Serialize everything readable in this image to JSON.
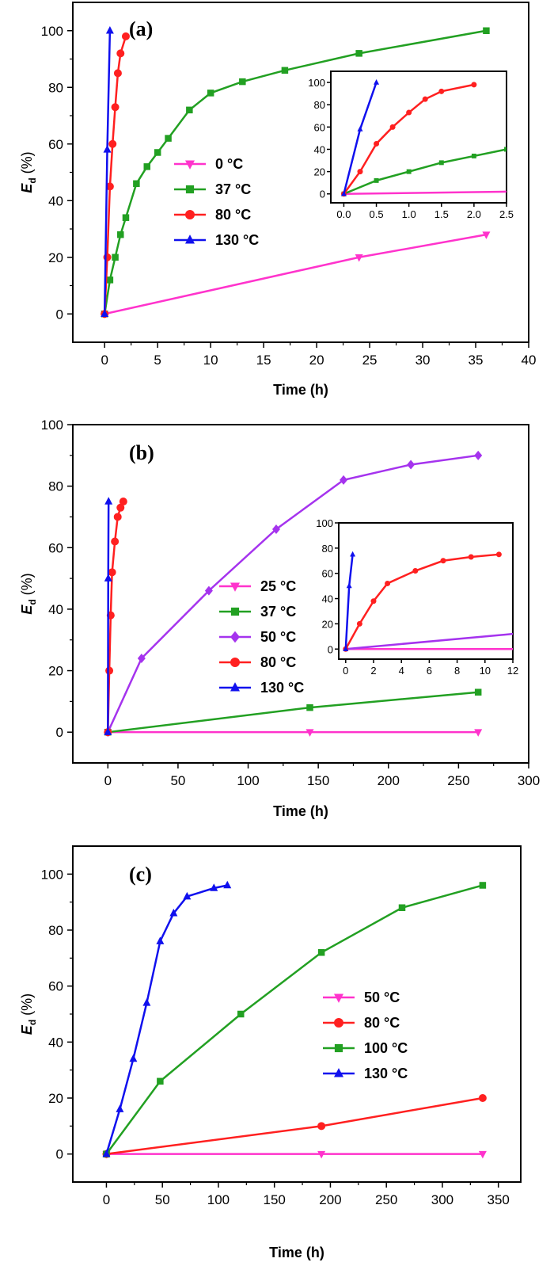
{
  "colors": {
    "magenta": "#ff33cc",
    "green": "#22a022",
    "red": "#ff2020",
    "blue": "#1010ee",
    "purple": "#a533ee"
  },
  "chart_data": [
    {
      "id": "a",
      "type": "line",
      "panel_label": "(a)",
      "xlabel": "Time (h)",
      "ylabel_main": "E",
      "ylabel_sub": "d",
      "ylabel_unit": " (%)",
      "xlim": [
        -3,
        40
      ],
      "ylim": [
        -10,
        110
      ],
      "xticks": [
        0,
        5,
        10,
        15,
        20,
        25,
        30,
        35,
        40
      ],
      "yticks": [
        0,
        20,
        40,
        60,
        80,
        100
      ],
      "legend_position": "center-left",
      "series": [
        {
          "name": "0 °C",
          "color": "magenta",
          "marker": "triangle-down",
          "x": [
            0,
            24,
            36
          ],
          "y": [
            0,
            20,
            28
          ]
        },
        {
          "name": "37 °C",
          "color": "green",
          "marker": "square",
          "x": [
            0,
            0.5,
            1,
            1.5,
            2,
            3,
            4,
            5,
            6,
            8,
            10,
            13,
            17,
            24,
            36
          ],
          "y": [
            0,
            12,
            20,
            28,
            34,
            46,
            52,
            57,
            62,
            72,
            78,
            82,
            86,
            92,
            100
          ]
        },
        {
          "name": "80 °C",
          "color": "red",
          "marker": "circle",
          "x": [
            0,
            0.25,
            0.5,
            0.75,
            1,
            1.25,
            1.5,
            2
          ],
          "y": [
            0,
            20,
            45,
            60,
            73,
            85,
            92,
            98
          ]
        },
        {
          "name": "130 °C",
          "color": "blue",
          "marker": "triangle-up",
          "x": [
            0,
            0.25,
            0.5
          ],
          "y": [
            0,
            58,
            100
          ]
        }
      ],
      "inset": {
        "xlim": [
          -0.2,
          2.5
        ],
        "ylim": [
          -8,
          110
        ],
        "xticks": [
          0.0,
          0.5,
          1.0,
          1.5,
          2.0,
          2.5
        ],
        "xtick_labels": [
          "0.0",
          "0.5",
          "1.0",
          "1.5",
          "2.0",
          "2.5"
        ],
        "yticks": [
          0,
          20,
          40,
          60,
          80,
          100
        ],
        "series": [
          {
            "color": "magenta",
            "marker": "none",
            "x": [
              0,
              2.5
            ],
            "y": [
              0,
              2
            ]
          },
          {
            "color": "green",
            "marker": "square",
            "x": [
              0,
              0.5,
              1,
              1.5,
              2,
              2.5
            ],
            "y": [
              0,
              12,
              20,
              28,
              34,
              40
            ]
          },
          {
            "color": "red",
            "marker": "circle",
            "x": [
              0,
              0.25,
              0.5,
              0.75,
              1,
              1.25,
              1.5,
              2
            ],
            "y": [
              0,
              20,
              45,
              60,
              73,
              85,
              92,
              98
            ]
          },
          {
            "color": "blue",
            "marker": "triangle-up",
            "x": [
              0,
              0.25,
              0.5
            ],
            "y": [
              0,
              58,
              100
            ]
          }
        ]
      }
    },
    {
      "id": "b",
      "type": "line",
      "panel_label": "(b)",
      "xlabel": "Time (h)",
      "ylabel_main": "E",
      "ylabel_sub": "d",
      "ylabel_unit": " (%)",
      "xlim": [
        -25,
        300
      ],
      "ylim": [
        -10,
        100
      ],
      "xticks": [
        0,
        50,
        100,
        150,
        200,
        250,
        300
      ],
      "yticks": [
        0,
        20,
        40,
        60,
        80,
        100
      ],
      "legend_position": "center-left",
      "series": [
        {
          "name": "25 °C",
          "color": "magenta",
          "marker": "triangle-down",
          "x": [
            0,
            144,
            264
          ],
          "y": [
            0,
            0,
            0
          ]
        },
        {
          "name": "37 °C",
          "color": "green",
          "marker": "square",
          "x": [
            0,
            144,
            264
          ],
          "y": [
            0,
            8,
            13
          ]
        },
        {
          "name": "50 °C",
          "color": "purple",
          "marker": "diamond",
          "x": [
            0,
            24,
            72,
            120,
            168,
            216,
            264
          ],
          "y": [
            0,
            24,
            46,
            66,
            82,
            87,
            90
          ]
        },
        {
          "name": "80 °C",
          "color": "red",
          "marker": "circle",
          "x": [
            0,
            1,
            2,
            3,
            5,
            7,
            9,
            11
          ],
          "y": [
            0,
            20,
            38,
            52,
            62,
            70,
            73,
            75
          ]
        },
        {
          "name": "130 °C",
          "color": "blue",
          "marker": "triangle-up",
          "x": [
            0,
            0.25,
            0.5
          ],
          "y": [
            0,
            50,
            75
          ]
        }
      ],
      "inset": {
        "xlim": [
          -0.5,
          12
        ],
        "ylim": [
          -8,
          100
        ],
        "xticks": [
          0,
          2,
          4,
          6,
          8,
          10,
          12
        ],
        "xtick_labels": [
          "0",
          "2",
          "4",
          "6",
          "8",
          "10",
          "12"
        ],
        "yticks": [
          0,
          20,
          40,
          60,
          80,
          100
        ],
        "series": [
          {
            "color": "magenta",
            "marker": "none",
            "x": [
              0,
              12
            ],
            "y": [
              0,
              0
            ]
          },
          {
            "color": "purple",
            "marker": "none",
            "x": [
              0,
              12
            ],
            "y": [
              0,
              12
            ]
          },
          {
            "color": "red",
            "marker": "circle",
            "x": [
              0,
              1,
              2,
              3,
              5,
              7,
              9,
              11
            ],
            "y": [
              0,
              20,
              38,
              52,
              62,
              70,
              73,
              75
            ]
          },
          {
            "color": "blue",
            "marker": "triangle-up",
            "x": [
              0,
              0.25,
              0.5
            ],
            "y": [
              0,
              50,
              75
            ]
          }
        ]
      }
    },
    {
      "id": "c",
      "type": "line",
      "panel_label": "(c)",
      "xlabel": "Time (h)",
      "ylabel_main": "E",
      "ylabel_sub": "d",
      "ylabel_unit": " (%)",
      "xlim": [
        -30,
        370
      ],
      "ylim": [
        -10,
        110
      ],
      "xticks": [
        0,
        50,
        100,
        150,
        200,
        250,
        300,
        350
      ],
      "yticks": [
        0,
        20,
        40,
        60,
        80,
        100
      ],
      "legend_position": "center-right",
      "series": [
        {
          "name": "50 °C",
          "color": "magenta",
          "marker": "triangle-down",
          "x": [
            0,
            192,
            336
          ],
          "y": [
            0,
            0,
            0
          ]
        },
        {
          "name": "80 °C",
          "color": "red",
          "marker": "circle",
          "x": [
            0,
            192,
            336
          ],
          "y": [
            0,
            10,
            20
          ]
        },
        {
          "name": "100 °C",
          "color": "green",
          "marker": "square",
          "x": [
            0,
            48,
            120,
            192,
            264,
            336
          ],
          "y": [
            0,
            26,
            50,
            72,
            88,
            96
          ]
        },
        {
          "name": "130 °C",
          "color": "blue",
          "marker": "triangle-up",
          "x": [
            0,
            12,
            24,
            36,
            48,
            60,
            72,
            96,
            108
          ],
          "y": [
            0,
            16,
            34,
            54,
            76,
            86,
            92,
            95,
            96
          ]
        }
      ]
    }
  ]
}
